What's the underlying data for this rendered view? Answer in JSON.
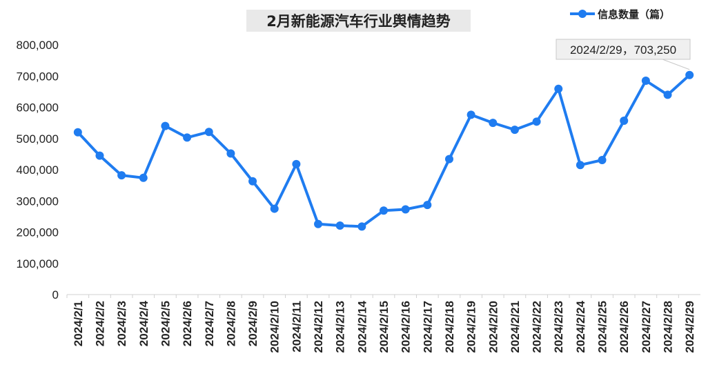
{
  "chart_data": {
    "type": "line",
    "title": "2月新能源汽车行业舆情趋势",
    "categories": [
      "2024/2/1",
      "2024/2/2",
      "2024/2/3",
      "2024/2/4",
      "2024/2/5",
      "2024/2/6",
      "2024/2/7",
      "2024/2/8",
      "2024/2/9",
      "2024/2/10",
      "2024/2/11",
      "2024/2/12",
      "2024/2/13",
      "2024/2/14",
      "2024/2/15",
      "2024/2/16",
      "2024/2/17",
      "2024/2/18",
      "2024/2/19",
      "2024/2/20",
      "2024/2/21",
      "2024/2/22",
      "2024/2/23",
      "2024/2/24",
      "2024/2/25",
      "2024/2/26",
      "2024/2/27",
      "2024/2/28",
      "2024/2/29"
    ],
    "series": [
      {
        "name": "信息数量（篇）",
        "color": "#1f7cf0",
        "values": [
          520000,
          445000,
          382000,
          374000,
          540000,
          503000,
          521000,
          452000,
          363000,
          275000,
          418000,
          226000,
          221000,
          218000,
          269000,
          273000,
          287000,
          434000,
          576000,
          550000,
          528000,
          554000,
          659000,
          415000,
          431000,
          557000,
          685000,
          640000,
          703250
        ]
      }
    ],
    "ylim": [
      0,
      800000
    ],
    "yticks": [
      0,
      100000,
      200000,
      300000,
      400000,
      500000,
      600000,
      700000,
      800000
    ],
    "ytick_labels": [
      "0",
      "100,000",
      "200,000",
      "300,000",
      "400,000",
      "500,000",
      "600,000",
      "700,000",
      "800,000"
    ],
    "legend_position": "top-right",
    "grid": false,
    "annotation": {
      "text": "2024/2/29，703,250",
      "category": "2024/2/29",
      "value": 703250
    }
  }
}
